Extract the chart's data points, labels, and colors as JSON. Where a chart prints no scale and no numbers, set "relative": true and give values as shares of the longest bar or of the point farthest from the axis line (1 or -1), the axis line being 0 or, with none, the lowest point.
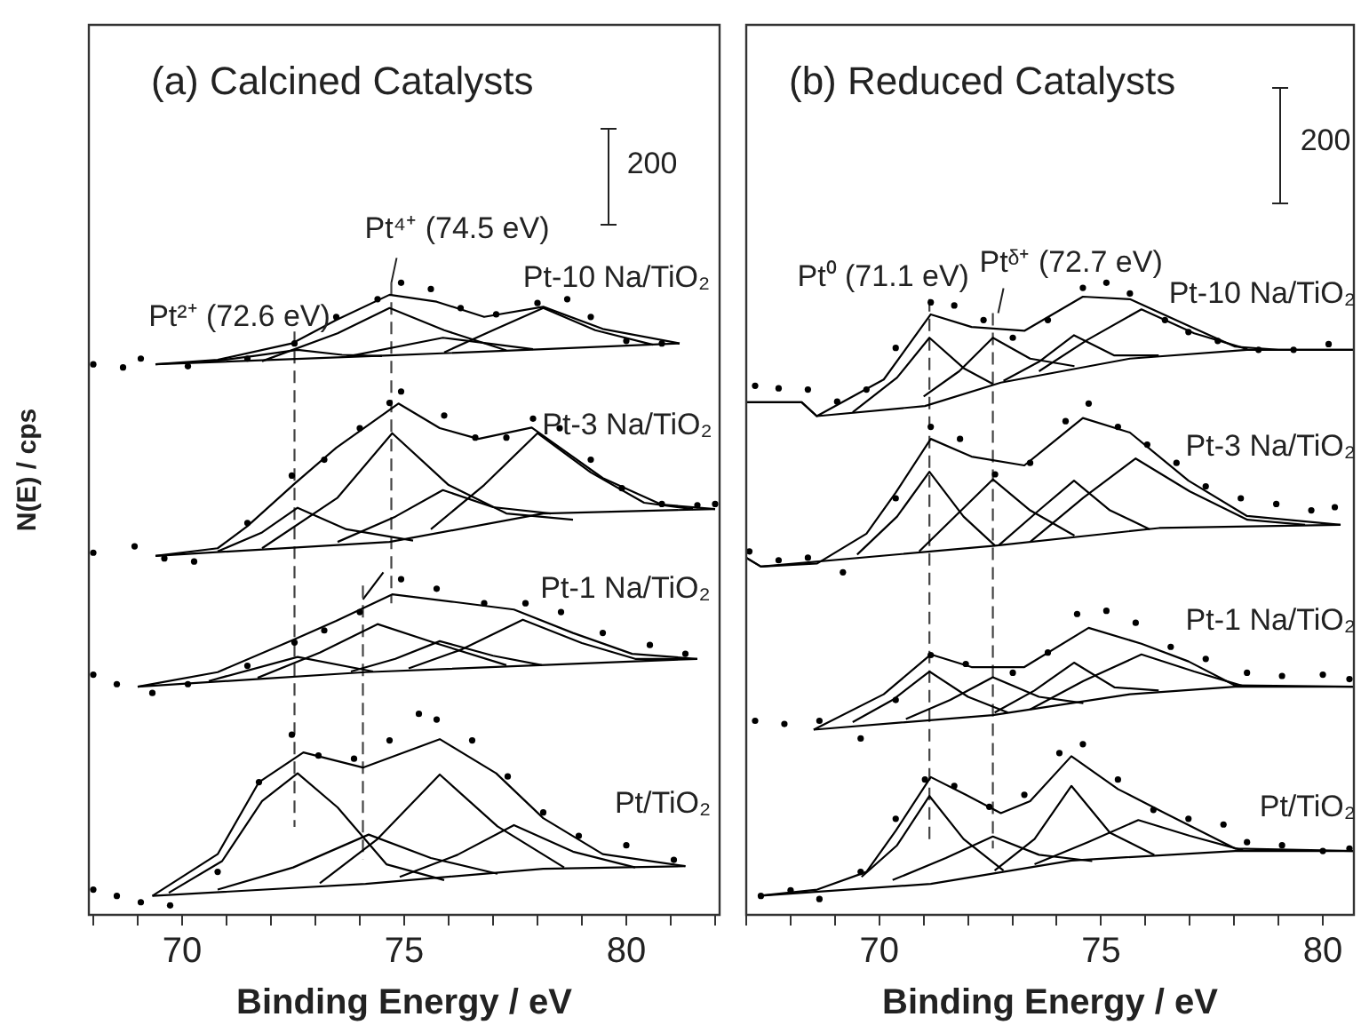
{
  "chart_data": [
    {
      "type": "line",
      "title": "(a) Calcined Catalysts",
      "xlabel": "Binding Energy / eV",
      "ylabel": "N(E) / cps",
      "relative": true,
      "color": "#000000",
      "xlim": [
        67.9,
        82.1
      ],
      "xticks": [
        {
          "value": 68,
          "label": null
        },
        {
          "value": 69,
          "label": null
        },
        70,
        {
          "value": 71,
          "label": null
        },
        {
          "value": 72,
          "label": null
        },
        {
          "value": 73,
          "label": null
        },
        {
          "value": 74,
          "label": null
        },
        75,
        {
          "value": 76,
          "label": null
        },
        {
          "value": 77,
          "label": null
        },
        {
          "value": 78,
          "label": null
        },
        {
          "value": 79,
          "label": null
        },
        80,
        {
          "value": 81,
          "label": null
        },
        {
          "value": 82,
          "label": null
        }
      ],
      "annotations": [
        {
          "text": "Pt²⁺ (72.6 eV)",
          "x": 72.53,
          "y": 0.923
        },
        {
          "text": "Pt⁴⁺ (74.5 eV)",
          "x": 74.71,
          "y": 1.0
        },
        "Pt-10 Na/TiO₂",
        "Pt-3 Na/TiO₂",
        "Pt-1 Na/TiO₂",
        "Pt/TiO₂",
        "200"
      ],
      "series": [
        {
          "type": "scatter",
          "marker": "circle",
          "x": [
            68.0,
            68.67,
            69.07,
            70.13,
            71.47,
            72.53,
            73.47,
            74.4,
            74.93,
            75.6,
            76.27,
            77.07,
            78.0,
            78.67,
            79.2,
            80.0,
            80.8
          ],
          "values": [
            0.871,
            0.866,
            0.88,
            0.868,
            0.88,
            0.904,
            0.946,
            0.974,
            1.0,
            0.99,
            0.96,
            0.95,
            0.968,
            0.974,
            0.946,
            0.908,
            0.904
          ]
        },
        {
          "type": "line",
          "x": [
            69.4,
            70.8,
            72.47,
            73.47,
            74.67,
            75.73,
            76.8,
            78.13,
            79.47,
            81.2
          ],
          "values": [
            0.871,
            0.878,
            0.904,
            0.941,
            0.981,
            0.97,
            0.946,
            0.962,
            0.927,
            0.904
          ]
        },
        {
          "type": "line",
          "x": [
            69.4,
            74.67,
            78.13,
            81.2
          ],
          "values": [
            0.871,
            0.885,
            0.895,
            0.904
          ]
        },
        {
          "type": "line",
          "x": [
            70.5,
            71.6,
            72.6,
            73.6,
            74.5
          ],
          "values": [
            0.874,
            0.884,
            0.894,
            0.886,
            0.884
          ]
        },
        {
          "type": "line",
          "x": [
            71.8,
            73.5,
            74.67,
            75.9,
            77.3
          ],
          "values": [
            0.876,
            0.92,
            0.96,
            0.925,
            0.893
          ]
        },
        {
          "type": "line",
          "x": [
            73.7,
            75.87,
            77.9
          ],
          "values": [
            0.883,
            0.913,
            0.895
          ]
        },
        {
          "type": "line",
          "x": [
            75.9,
            77.0,
            78.13,
            79.3,
            80.6
          ],
          "values": [
            0.89,
            0.925,
            0.96,
            0.925,
            0.902
          ]
        },
        {
          "type": "scatter",
          "marker": "circle",
          "x": [
            68.0,
            68.93,
            69.6,
            70.27,
            71.47,
            72.47,
            73.2,
            74.0,
            74.67,
            74.93,
            75.9,
            76.6,
            77.3,
            77.9,
            78.5,
            79.2,
            79.9,
            80.8,
            81.6,
            82.0
          ],
          "values": [
            0.573,
            0.583,
            0.564,
            0.559,
            0.62,
            0.695,
            0.72,
            0.77,
            0.81,
            0.828,
            0.79,
            0.755,
            0.755,
            0.785,
            0.77,
            0.72,
            0.675,
            0.65,
            0.648,
            0.65
          ]
        },
        {
          "type": "line",
          "x": [
            69.4,
            70.8,
            71.47,
            72.53,
            73.47,
            74.87,
            75.8,
            76.67,
            77.87,
            79.47,
            80.8,
            82.0
          ],
          "values": [
            0.568,
            0.58,
            0.615,
            0.682,
            0.739,
            0.809,
            0.77,
            0.753,
            0.771,
            0.691,
            0.649,
            0.642
          ]
        },
        {
          "type": "line",
          "x": [
            69.4,
            74.67,
            78.13,
            82.0
          ],
          "values": [
            0.568,
            0.59,
            0.635,
            0.642
          ]
        },
        {
          "type": "line",
          "x": [
            70.8,
            71.8,
            72.6,
            73.7,
            75.2
          ],
          "values": [
            0.575,
            0.605,
            0.644,
            0.61,
            0.592
          ]
        },
        {
          "type": "line",
          "x": [
            71.8,
            73.5,
            74.73,
            76.0,
            77.3,
            78.8
          ],
          "values": [
            0.58,
            0.66,
            0.762,
            0.68,
            0.635,
            0.625
          ]
        },
        {
          "type": "line",
          "x": [
            73.5,
            74.8,
            75.87,
            77.0,
            78.3
          ],
          "values": [
            0.59,
            0.63,
            0.672,
            0.645,
            0.635
          ]
        },
        {
          "type": "line",
          "x": [
            75.6,
            76.8,
            78.0,
            79.2,
            80.4,
            81.5
          ],
          "values": [
            0.61,
            0.68,
            0.762,
            0.7,
            0.652,
            0.642
          ]
        },
        {
          "type": "scatter",
          "marker": "circle",
          "x": [
            68.0,
            68.53,
            69.33,
            70.13,
            71.47,
            72.53,
            73.2,
            74.0,
            74.93,
            75.73,
            76.8,
            77.73,
            78.53,
            79.47,
            80.53,
            81.33
          ],
          "values": [
            0.38,
            0.365,
            0.351,
            0.365,
            0.394,
            0.431,
            0.45,
            0.479,
            0.531,
            0.516,
            0.493,
            0.493,
            0.479,
            0.446,
            0.427,
            0.413
          ]
        },
        {
          "type": "line",
          "x": [
            69.0,
            70.8,
            72.53,
            73.47,
            74.73,
            76.13,
            77.47,
            78.8,
            80.13,
            81.6
          ],
          "values": [
            0.361,
            0.384,
            0.436,
            0.465,
            0.507,
            0.495,
            0.483,
            0.446,
            0.413,
            0.405
          ]
        },
        {
          "type": "line",
          "x": [
            69.0,
            74.13,
            81.6
          ],
          "values": [
            0.361,
            0.384,
            0.405
          ]
        },
        {
          "type": "line",
          "x": [
            70.6,
            72.6,
            74.3
          ],
          "values": [
            0.37,
            0.408,
            0.385
          ]
        },
        {
          "type": "line",
          "x": [
            71.7,
            73.1,
            74.4,
            75.7,
            77.3
          ],
          "values": [
            0.375,
            0.415,
            0.46,
            0.43,
            0.395
          ]
        },
        {
          "type": "line",
          "x": [
            73.8,
            74.8,
            75.8,
            77.0,
            78.1
          ],
          "values": [
            0.385,
            0.405,
            0.433,
            0.41,
            0.395
          ]
        },
        {
          "type": "line",
          "x": [
            75.1,
            76.3,
            77.67,
            79.0,
            80.2,
            81.4
          ],
          "values": [
            0.39,
            0.42,
            0.467,
            0.43,
            0.405,
            0.405
          ]
        },
        {
          "type": "scatter",
          "marker": "circle",
          "x": [
            68.0,
            68.53,
            69.07,
            69.73,
            70.8,
            71.73,
            72.47,
            73.07,
            73.87,
            74.67,
            75.33,
            75.73,
            76.53,
            77.33,
            78.13,
            78.93,
            80.0,
            81.07
          ],
          "values": [
            0.04,
            0.03,
            0.02,
            0.015,
            0.068,
            0.21,
            0.285,
            0.252,
            0.247,
            0.276,
            0.318,
            0.309,
            0.276,
            0.219,
            0.162,
            0.125,
            0.11,
            0.087
          ]
        },
        {
          "type": "line",
          "x": [
            69.33,
            70.8,
            71.73,
            72.73,
            74.07,
            75.8,
            77.07,
            78.13,
            79.47,
            81.33
          ],
          "values": [
            0.03,
            0.096,
            0.21,
            0.257,
            0.233,
            0.278,
            0.224,
            0.153,
            0.096,
            0.077
          ]
        },
        {
          "type": "line",
          "x": [
            69.33,
            74.13,
            78.13,
            81.33
          ],
          "values": [
            0.03,
            0.049,
            0.073,
            0.077
          ]
        },
        {
          "type": "line",
          "x": [
            69.7,
            70.9,
            71.8,
            72.6,
            73.5,
            74.6,
            75.9
          ],
          "values": [
            0.035,
            0.085,
            0.18,
            0.224,
            0.17,
            0.08,
            0.055
          ]
        },
        {
          "type": "line",
          "x": [
            70.8,
            72.5,
            74.2,
            75.6,
            77.1
          ],
          "values": [
            0.04,
            0.075,
            0.127,
            0.09,
            0.065
          ]
        },
        {
          "type": "line",
          "x": [
            73.1,
            74.4,
            75.8,
            77.1,
            78.6
          ],
          "values": [
            0.05,
            0.12,
            0.222,
            0.14,
            0.075
          ]
        },
        {
          "type": "line",
          "x": [
            74.9,
            76.2,
            77.47,
            78.8,
            80.2
          ],
          "values": [
            0.06,
            0.095,
            0.142,
            0.1,
            0.075
          ]
        },
        {
          "type": "line",
          "line_style": "dashed",
          "color": "#444444",
          "x": [
            72.53,
            72.53
          ],
          "values": [
            0.923,
            0.139
          ]
        },
        {
          "type": "line",
          "line_style": "dashed",
          "color": "#444444",
          "x": [
            74.71,
            74.71
          ],
          "values": [
            1.0,
            0.493
          ]
        },
        {
          "type": "line",
          "line_style": "dashed",
          "color": "#444444",
          "x": [
            74.07,
            74.07
          ],
          "values": [
            0.521,
            0.088
          ]
        },
        {
          "type": "line",
          "x": [
            74.07,
            74.53
          ],
          "values": [
            0.499,
            0.542
          ]
        }
      ]
    },
    {
      "type": "line",
      "title": "(b) Reduced Catalysts",
      "xlabel": "Binding Energy / eV",
      "relative": true,
      "color": "#000000",
      "xlim": [
        67.0,
        80.7
      ],
      "xticks": [
        {
          "value": 67,
          "label": null
        },
        {
          "value": 68,
          "label": null
        },
        {
          "value": 69,
          "label": null
        },
        70,
        {
          "value": 71,
          "label": null
        },
        {
          "value": 72,
          "label": null
        },
        {
          "value": 73,
          "label": null
        },
        {
          "value": 74,
          "label": null
        },
        75,
        {
          "value": 76,
          "label": null
        },
        {
          "value": 77,
          "label": null
        },
        {
          "value": 78,
          "label": null
        },
        {
          "value": 79,
          "label": null
        },
        80
      ],
      "annotations": [
        {
          "text": "Pt⁰ (71.1 eV)",
          "x": 71.13,
          "y": 0.974
        },
        {
          "text": "Ptᵟ⁺ (72.7 eV)",
          "x": 72.56,
          "y": 0.952
        },
        "Pt-10 Na/TiO₂",
        "Pt-3 Na/TiO₂",
        "Pt-1 Na/TiO₂",
        "Pt/TiO₂",
        "200"
      ],
      "series": [
        {
          "type": "scatter",
          "marker": "circle",
          "x": [
            67.2,
            67.73,
            68.39,
            69.05,
            69.71,
            70.37,
            71.16,
            71.69,
            72.35,
            73.01,
            73.8,
            74.59,
            75.12,
            75.65,
            76.44,
            76.97,
            77.63,
            78.55,
            79.34,
            80.13
          ],
          "values": [
            0.837,
            0.833,
            0.831,
            0.812,
            0.831,
            0.897,
            0.969,
            0.964,
            0.941,
            0.913,
            0.941,
            0.992,
            1.0,
            0.983,
            0.941,
            0.922,
            0.908,
            0.894,
            0.894,
            0.903
          ]
        },
        {
          "type": "line",
          "x": [
            67.0,
            68.25,
            68.59,
            70.1,
            71.16,
            72.08,
            73.27,
            74.59,
            75.65,
            76.97,
            78.02,
            79.0,
            80.7
          ],
          "values": [
            0.811,
            0.811,
            0.789,
            0.847,
            0.95,
            0.93,
            0.924,
            0.978,
            0.974,
            0.932,
            0.899,
            0.894,
            0.894
          ]
        },
        {
          "type": "line",
          "x": [
            67.0,
            68.25,
            68.59,
            71.03,
            72.74,
            75.65,
            78.29,
            80.7
          ],
          "values": [
            0.811,
            0.811,
            0.789,
            0.805,
            0.842,
            0.88,
            0.894,
            0.894
          ]
        },
        {
          "type": "line",
          "x": [
            69.4,
            70.4,
            71.13,
            71.9,
            72.56
          ],
          "values": [
            0.795,
            0.85,
            0.913,
            0.865,
            0.84
          ]
        },
        {
          "type": "line",
          "x": [
            71.0,
            71.8,
            72.56,
            73.4,
            74.4
          ],
          "values": [
            0.82,
            0.86,
            0.913,
            0.88,
            0.868
          ]
        },
        {
          "type": "line",
          "x": [
            72.8,
            73.6,
            74.39,
            75.3,
            76.3
          ],
          "values": [
            0.845,
            0.875,
            0.917,
            0.885,
            0.885
          ]
        },
        {
          "type": "line",
          "x": [
            73.6,
            74.7,
            75.91,
            77.1,
            78.3
          ],
          "values": [
            0.86,
            0.91,
            0.958,
            0.92,
            0.895
          ]
        },
        {
          "type": "scatter",
          "marker": "circle",
          "x": [
            67.07,
            67.73,
            68.39,
            69.18,
            70.37,
            71.16,
            71.82,
            72.61,
            73.4,
            74.2,
            74.72,
            75.38,
            76.04,
            76.7,
            77.36,
            78.15,
            78.95,
            79.74,
            80.27
          ],
          "values": [
            0.575,
            0.561,
            0.565,
            0.542,
            0.659,
            0.772,
            0.753,
            0.697,
            0.715,
            0.781,
            0.809,
            0.772,
            0.744,
            0.715,
            0.678,
            0.659,
            0.65,
            0.64,
            0.645
          ]
        },
        {
          "type": "line",
          "x": [
            67.0,
            67.33,
            68.6,
            69.71,
            70.37,
            71.16,
            72.08,
            73.27,
            74.59,
            75.65,
            76.97,
            78.29,
            80.4
          ],
          "values": [
            0.565,
            0.551,
            0.556,
            0.603,
            0.668,
            0.753,
            0.725,
            0.711,
            0.786,
            0.763,
            0.687,
            0.631,
            0.617
          ]
        },
        {
          "type": "line",
          "x": [
            67.0,
            67.33,
            72.61,
            76.31,
            80.4
          ],
          "values": [
            0.565,
            0.551,
            0.584,
            0.612,
            0.617
          ]
        },
        {
          "type": "line",
          "x": [
            69.5,
            70.4,
            71.13,
            71.9,
            72.61
          ],
          "values": [
            0.57,
            0.63,
            0.701,
            0.63,
            0.584
          ]
        },
        {
          "type": "line",
          "x": [
            70.9,
            71.7,
            72.56,
            73.4,
            74.4
          ],
          "values": [
            0.575,
            0.63,
            0.689,
            0.64,
            0.6
          ]
        },
        {
          "type": "line",
          "x": [
            72.7,
            73.6,
            74.39,
            75.2,
            76.1
          ],
          "values": [
            0.585,
            0.64,
            0.687,
            0.64,
            0.61
          ]
        },
        {
          "type": "line",
          "x": [
            73.4,
            74.6,
            75.78,
            77.0,
            78.3,
            79.6
          ],
          "values": [
            0.59,
            0.66,
            0.722,
            0.67,
            0.625,
            0.617
          ]
        },
        {
          "type": "scatter",
          "marker": "circle",
          "x": [
            67.2,
            67.86,
            68.65,
            69.58,
            70.37,
            71.16,
            71.95,
            73.01,
            73.8,
            74.46,
            75.12,
            75.78,
            76.57,
            77.36,
            78.29,
            79.08,
            80.0,
            80.6
          ],
          "values": [
            0.307,
            0.302,
            0.307,
            0.279,
            0.34,
            0.411,
            0.397,
            0.383,
            0.415,
            0.476,
            0.481,
            0.462,
            0.424,
            0.405,
            0.383,
            0.378,
            0.38,
            0.373
          ]
        },
        {
          "type": "line",
          "x": [
            68.52,
            70.1,
            71.16,
            72.08,
            73.27,
            74.72,
            75.91,
            76.97,
            78.02,
            80.7
          ],
          "values": [
            0.293,
            0.349,
            0.412,
            0.392,
            0.392,
            0.454,
            0.429,
            0.401,
            0.363,
            0.361
          ]
        },
        {
          "type": "line",
          "x": [
            68.52,
            72.56,
            75.65,
            78.02,
            80.7
          ],
          "values": [
            0.293,
            0.316,
            0.349,
            0.361,
            0.361
          ]
        },
        {
          "type": "line",
          "x": [
            69.4,
            70.3,
            71.13,
            72.0,
            72.9
          ],
          "values": [
            0.305,
            0.34,
            0.385,
            0.345,
            0.32
          ]
        },
        {
          "type": "line",
          "x": [
            70.6,
            71.6,
            72.56,
            73.6,
            74.6
          ],
          "values": [
            0.31,
            0.34,
            0.376,
            0.345,
            0.335
          ]
        },
        {
          "type": "line",
          "x": [
            72.6,
            73.5,
            74.39,
            75.3,
            76.3
          ],
          "values": [
            0.32,
            0.355,
            0.399,
            0.36,
            0.355
          ]
        },
        {
          "type": "line",
          "x": [
            73.4,
            74.6,
            75.91,
            77.1,
            78.2
          ],
          "values": [
            0.325,
            0.37,
            0.412,
            0.385,
            0.362
          ]
        },
        {
          "type": "scatter",
          "marker": "circle",
          "x": [
            67.33,
            68.0,
            68.65,
            69.58,
            70.37,
            71.03,
            71.69,
            72.48,
            73.27,
            74.06,
            74.59,
            75.38,
            76.18,
            76.97,
            77.76,
            78.29,
            79.08,
            80.0,
            80.6
          ],
          "values": [
            0.03,
            0.039,
            0.025,
            0.068,
            0.152,
            0.214,
            0.204,
            0.171,
            0.19,
            0.256,
            0.27,
            0.214,
            0.166,
            0.152,
            0.143,
            0.115,
            0.11,
            0.101,
            0.105
          ]
        },
        {
          "type": "line",
          "x": [
            67.27,
            68.6,
            69.71,
            70.37,
            71.16,
            71.95,
            72.74,
            73.4,
            74.33,
            75.38,
            76.44,
            78.02,
            80.7
          ],
          "values": [
            0.03,
            0.04,
            0.068,
            0.133,
            0.218,
            0.19,
            0.161,
            0.18,
            0.251,
            0.199,
            0.161,
            0.105,
            0.101
          ]
        },
        {
          "type": "line",
          "x": [
            67.27,
            71.16,
            74.33,
            78.02,
            80.7
          ],
          "values": [
            0.03,
            0.049,
            0.086,
            0.101,
            0.101
          ]
        },
        {
          "type": "line",
          "x": [
            69.6,
            70.4,
            71.13,
            71.9,
            72.8
          ],
          "values": [
            0.06,
            0.11,
            0.188,
            0.12,
            0.07
          ]
        },
        {
          "type": "line",
          "x": [
            70.3,
            71.5,
            72.56,
            73.6,
            74.8
          ],
          "values": [
            0.055,
            0.09,
            0.124,
            0.095,
            0.085
          ]
        },
        {
          "type": "line",
          "x": [
            72.6,
            73.5,
            74.33,
            75.2,
            76.2
          ],
          "values": [
            0.07,
            0.12,
            0.204,
            0.13,
            0.095
          ]
        },
        {
          "type": "line",
          "x": [
            73.5,
            74.7,
            75.84,
            77.0,
            78.2
          ],
          "values": [
            0.08,
            0.115,
            0.15,
            0.125,
            0.102
          ]
        },
        {
          "type": "line",
          "line_style": "dashed",
          "color": "#444444",
          "x": [
            71.13,
            71.13
          ],
          "values": [
            0.974,
            0.119
          ]
        },
        {
          "type": "line",
          "line_style": "dashed",
          "color": "#444444",
          "x": [
            72.56,
            72.56
          ],
          "values": [
            0.952,
            0.105
          ]
        }
      ]
    }
  ]
}
